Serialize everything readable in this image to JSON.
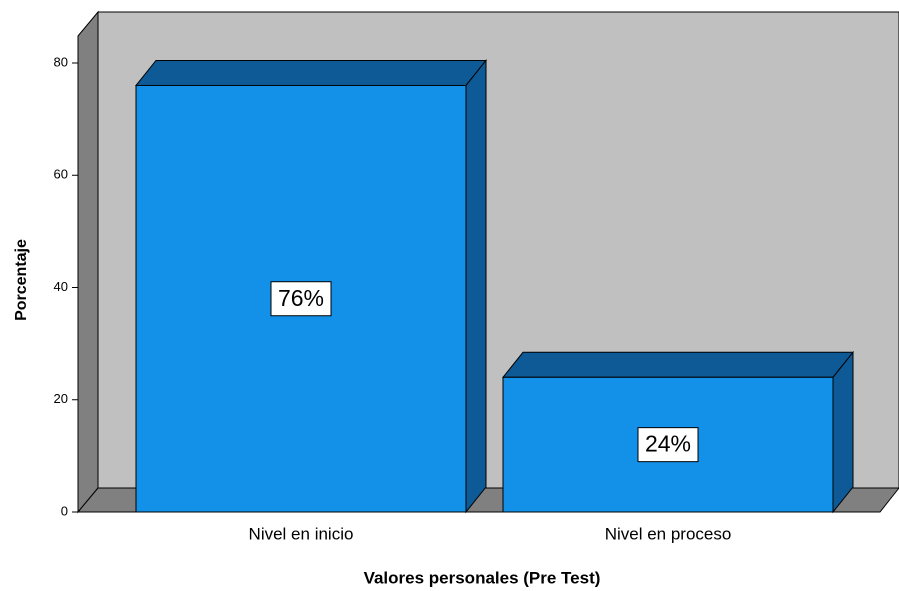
{
  "chart_data": {
    "type": "bar",
    "x_label": "Valores personales (Pre Test)",
    "y_label": "Porcentaje",
    "categories": [
      "Nivel en inicio",
      "Nivel en proceso"
    ],
    "values": [
      76,
      24
    ],
    "value_labels": [
      "76%",
      "24%"
    ],
    "color": "#1390e8",
    "ylim": [
      0,
      80
    ],
    "yticks": [
      0,
      20,
      40,
      60,
      80
    ]
  }
}
